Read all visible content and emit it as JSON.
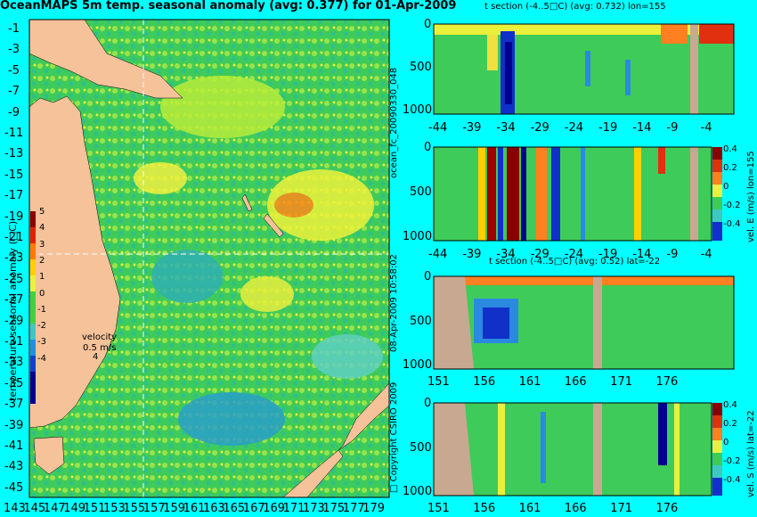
{
  "header": {
    "title": "OceanMAPS 5m temp. seasonal anomaly (avg: 0.377) for 01-Apr-2009",
    "section1_title": "t section (-4..5□C) (avg: 0.732) lon=155",
    "section2_title": "t section (-4..5□C) (avg: 0.52) lat=-22"
  },
  "side": {
    "run_id": "ocean_fc_20090330_048",
    "timestamp": "08-Apr-2009 10:58:02",
    "copyright": "□ Copyright CSIRO 2009",
    "cb_label": "temperature seasonal anomaly (□C)",
    "vel_label": "velocity",
    "vel_scale": "0.5 m/s",
    "vel_arrow": "4",
    "velE_label": "vel. E (m/s) lon=155",
    "velS_label": "vel. S (m/s) lat=-22"
  },
  "map": {
    "lat_ticks": [
      "-1",
      "-3",
      "-5",
      "-7",
      "-9",
      "-11",
      "-13",
      "-15",
      "-17",
      "-19",
      "-21",
      "-23",
      "-25",
      "-27",
      "-29",
      "-31",
      "-33",
      "-35",
      "-37",
      "-39",
      "-41",
      "-43",
      "-45"
    ],
    "lon_ticks": [
      "143",
      "145",
      "147",
      "149",
      "151",
      "153",
      "155",
      "157",
      "159",
      "161",
      "163",
      "165",
      "167",
      "169",
      "171",
      "173",
      "175",
      "177",
      "179"
    ],
    "colorbar_ticks": [
      "5",
      "4",
      "3",
      "2",
      "1",
      "0",
      "-1",
      "-2",
      "-3",
      "-4"
    ],
    "colors": {
      "ocean": "#33cc55",
      "land": "#f5c29a",
      "background": "#00ffff"
    }
  },
  "sections": {
    "depth_ticks": [
      "0",
      "500",
      "1000"
    ],
    "lat_ticks": [
      "-44",
      "-39",
      "-34",
      "-29",
      "-24",
      "-19",
      "-14",
      "-9",
      "-4"
    ],
    "lon_ticks": [
      "151",
      "156",
      "161",
      "166",
      "171",
      "176"
    ],
    "vel_ticks": [
      "0.4",
      "0.2",
      "0",
      "-0.2",
      "-0.4"
    ]
  },
  "chart_data": [
    {
      "type": "heatmap",
      "title": "OceanMAPS 5m temp. seasonal anomaly (avg: 0.377) for 01-Apr-2009",
      "xlabel": "",
      "ylabel": "",
      "xlim": [
        143,
        179
      ],
      "ylim": [
        -45,
        -1
      ],
      "colorbar_range": [
        -4,
        5
      ],
      "colorbar_label": "temperature seasonal anomaly (□C)"
    },
    {
      "type": "heatmap",
      "title": "t section (-4..5□C) (avg: 0.732) lon=155",
      "xlim": [
        -44,
        -1
      ],
      "ylim": [
        1000,
        0
      ]
    },
    {
      "type": "heatmap",
      "title": "",
      "ylabel": "vel. E (m/s) lon=155",
      "xlim": [
        -44,
        -1
      ],
      "ylim": [
        1000,
        0
      ],
      "colorbar_range": [
        -0.4,
        0.4
      ]
    },
    {
      "type": "heatmap",
      "title": "t section (-4..5□C) (avg: 0.52) lat=-22",
      "xlim": [
        150,
        180
      ],
      "ylim": [
        1000,
        0
      ]
    },
    {
      "type": "heatmap",
      "title": "",
      "ylabel": "vel. S (m/s) lat=-22",
      "xlim": [
        150,
        180
      ],
      "ylim": [
        1000,
        0
      ],
      "colorbar_range": [
        -0.4,
        0.4
      ]
    }
  ]
}
